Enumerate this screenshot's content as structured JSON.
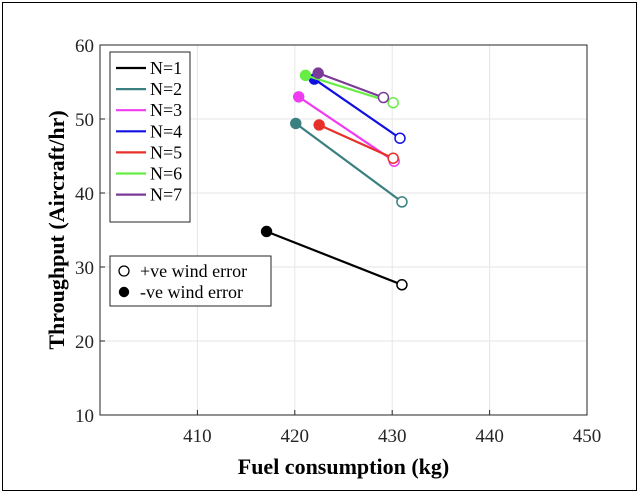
{
  "chart_data": {
    "type": "line",
    "title": "",
    "xlabel": "Fuel consumption (kg)",
    "ylabel": "Throughput (Aircraft/hr)",
    "xlim": [
      400,
      450
    ],
    "ylim": [
      10,
      60
    ],
    "xticks": [
      410,
      420,
      430,
      440,
      450
    ],
    "yticks": [
      10,
      20,
      30,
      40,
      50,
      60
    ],
    "grid": true,
    "legend_position": "top-left",
    "series": [
      {
        "name": "N=1",
        "color": "#000000",
        "neg": [
          417.1,
          34.8
        ],
        "pos": [
          431.0,
          27.6
        ]
      },
      {
        "name": "N=2",
        "color": "#3a8081",
        "neg": [
          420.1,
          49.4
        ],
        "pos": [
          431.0,
          38.8
        ]
      },
      {
        "name": "N=3",
        "color": "#f03cf0",
        "neg": [
          420.4,
          53.0
        ],
        "pos": [
          430.2,
          44.3
        ]
      },
      {
        "name": "N=4",
        "color": "#1010e0",
        "neg": [
          422.0,
          55.4
        ],
        "pos": [
          430.8,
          47.4
        ]
      },
      {
        "name": "N=5",
        "color": "#e8302a",
        "neg": [
          422.5,
          49.2
        ],
        "pos": [
          430.1,
          44.7
        ]
      },
      {
        "name": "N=6",
        "color": "#66ee44",
        "neg": [
          421.1,
          55.9
        ],
        "pos": [
          430.1,
          52.2
        ]
      },
      {
        "name": "N=7",
        "color": "#7a3a98",
        "neg": [
          422.4,
          56.2
        ],
        "pos": [
          429.1,
          52.9
        ]
      }
    ],
    "marker_legend": {
      "positive": "+ve wind error",
      "negative": "-ve wind error"
    }
  }
}
